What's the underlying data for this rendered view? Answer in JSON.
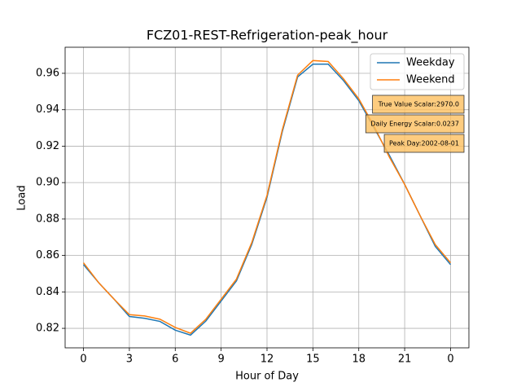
{
  "chart_data": {
    "type": "line",
    "title": "FCZ01-REST-Refrigeration-peak_hour",
    "xlabel": "Hour of Day",
    "ylabel": "Load",
    "x": [
      0,
      1,
      2,
      3,
      4,
      5,
      6,
      7,
      8,
      9,
      10,
      11,
      12,
      13,
      14,
      15,
      16,
      17,
      18,
      19,
      20,
      21,
      22,
      23,
      24
    ],
    "series": [
      {
        "name": "Weekday",
        "color": "#1f77b4",
        "values": [
          0.855,
          0.845,
          0.836,
          0.8265,
          0.8255,
          0.8238,
          0.819,
          0.8163,
          0.824,
          0.835,
          0.846,
          0.866,
          0.892,
          0.928,
          0.958,
          0.965,
          0.965,
          0.956,
          0.945,
          0.93,
          0.915,
          0.899,
          0.882,
          0.865,
          0.855
        ]
      },
      {
        "name": "Weekend",
        "color": "#ff7f0e",
        "values": [
          0.856,
          0.845,
          0.836,
          0.8275,
          0.8268,
          0.825,
          0.8205,
          0.8173,
          0.825,
          0.836,
          0.847,
          0.867,
          0.893,
          0.929,
          0.959,
          0.967,
          0.9665,
          0.957,
          0.946,
          0.931,
          0.914,
          0.899,
          0.882,
          0.866,
          0.856
        ]
      }
    ],
    "xlim": [
      -1.2,
      25.2
    ],
    "xticks": [
      0,
      3,
      6,
      9,
      12,
      15,
      18,
      21,
      {
        "value": 24,
        "label": "0"
      }
    ],
    "ylim": [
      0.8093,
      0.9743
    ],
    "yticks": [
      0.82,
      0.84,
      0.86,
      0.88,
      {
        "value": 0.9,
        "label": "0.90"
      },
      0.92,
      0.94,
      0.96
    ],
    "grid": true,
    "legend": "upper right",
    "annotations": [
      "True Value Scalar:2970.0",
      "Daily Energy Scalar:0.0237",
      "Peak Day:2002-08-01"
    ]
  }
}
